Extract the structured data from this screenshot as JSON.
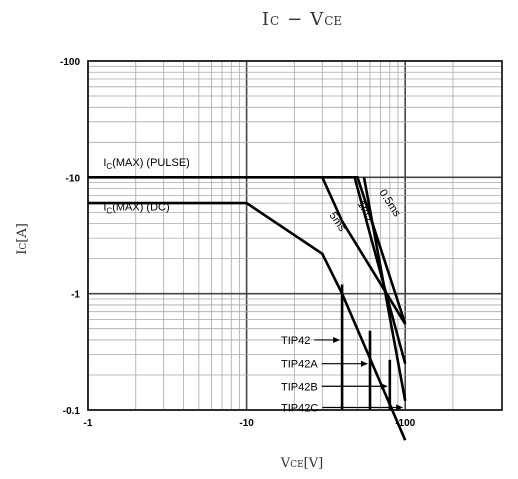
{
  "chart_data": {
    "type": "line",
    "title": {
      "main": "I",
      "main_sub": "C",
      "dash": "−",
      "main2": "V",
      "main2_sub": "CE"
    },
    "xlabel": {
      "main": "V",
      "sub": "CE",
      "unit": "[V]"
    },
    "ylabel": {
      "main": "I",
      "sub": "C",
      "unit": "[A]"
    },
    "x_scale": "log",
    "y_scale": "log",
    "xlim": [
      -1,
      -200
    ],
    "ylim": [
      -0.1,
      -100
    ],
    "x_ticks": [
      "-1",
      "-10",
      "-100"
    ],
    "y_ticks": [
      "-100",
      "-10",
      "-1",
      "-0.1"
    ],
    "grid": true,
    "series": [
      {
        "name": "IC(MAX) (PULSE)",
        "x": [
          -1,
          -50,
          -100
        ],
        "y": [
          -10,
          -10,
          -0.55
        ]
      },
      {
        "name": "IC(MAX) (DC)",
        "x": [
          -1,
          -10,
          -30,
          -40,
          -100
        ],
        "y": [
          -6,
          -6,
          -2.2,
          -1,
          -0.055
        ]
      },
      {
        "name": "5ms",
        "x": [
          -30,
          -40,
          -100
        ],
        "y": [
          -10,
          -4.2,
          -0.55
        ]
      },
      {
        "name": "1ms",
        "x": [
          -48,
          -100
        ],
        "y": [
          -10,
          -0.25
        ]
      },
      {
        "name": "0.5ms",
        "x": [
          -55,
          -100
        ],
        "y": [
          -10,
          -0.12
        ]
      }
    ],
    "voltage_limits": [
      {
        "name": "TIP42",
        "vce": -40,
        "ic_top": -1.2,
        "label_y": -0.4
      },
      {
        "name": "TIP42A",
        "vce": -60,
        "ic_top": -0.48,
        "label_y": -0.25
      },
      {
        "name": "TIP42B",
        "vce": -80,
        "ic_top": -0.27,
        "label_y": -0.16
      },
      {
        "name": "TIP42C",
        "vce": -100,
        "ic_top": -0.1,
        "label_y": -0.105
      }
    ],
    "annotations": [
      {
        "text": "I",
        "sub": "C",
        "rest": "(MAX) (PULSE)",
        "x": -1.25,
        "y": -12.5
      },
      {
        "text": "I",
        "sub": "C",
        "rest": "(MAX) (DC)",
        "x": -1.25,
        "y": -5.2
      },
      {
        "text": "5ms",
        "x": -36,
        "y": -4.0
      },
      {
        "text": "1ms",
        "x": -54,
        "y": -5.0
      },
      {
        "text": "0.5ms",
        "x": -77,
        "y": -5.8
      }
    ]
  }
}
